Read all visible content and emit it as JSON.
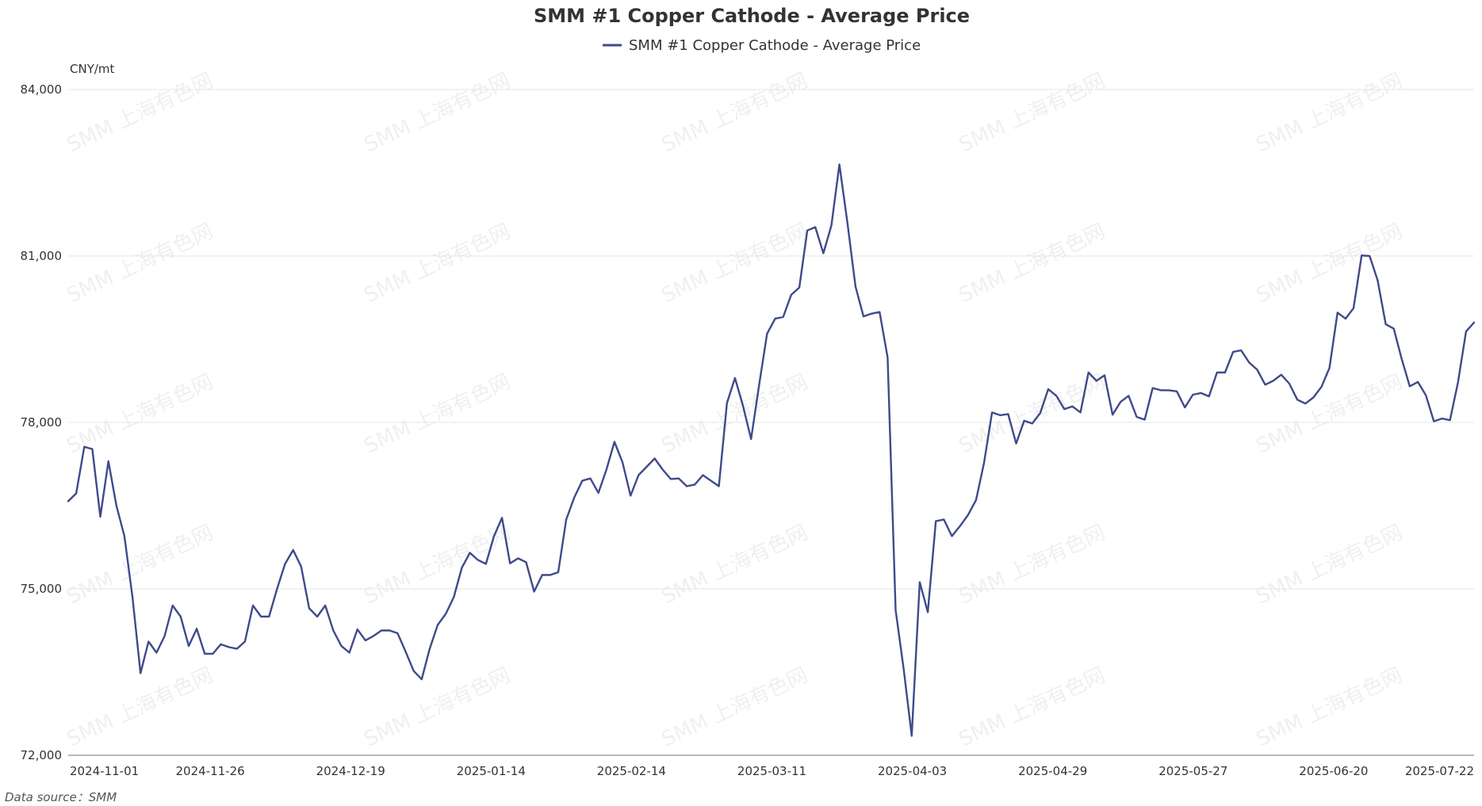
{
  "chart_data": {
    "type": "line",
    "title": "SMM #1 Copper Cathode - Average Price",
    "ylabel": "CNY/mt",
    "source": "Data source：SMM",
    "watermark": "SMM 上海有色网",
    "ylim": [
      72000,
      84000
    ],
    "yticks": [
      "84,000",
      "81,000",
      "78,000",
      "75,000",
      "72,000"
    ],
    "ytick_values": [
      84000,
      81000,
      78000,
      75000,
      72000
    ],
    "xtick_labels": [
      "2024-11-01",
      "2024-11-26",
      "2024-12-19",
      "2025-01-14",
      "2025-02-14",
      "2025-03-11",
      "2025-04-03",
      "2025-04-29",
      "2025-05-27",
      "2025-06-20",
      "2025-07-22"
    ],
    "legend_position": "top-center",
    "grid": true,
    "colors": {
      "series": "#3f4a8a"
    },
    "series": [
      {
        "name": "SMM #1 Copper Cathode - Average Price",
        "values": [
          76580,
          76720,
          77560,
          77520,
          76300,
          77300,
          76500,
          75950,
          74850,
          73480,
          74050,
          73850,
          74150,
          74700,
          74500,
          73970,
          74280,
          73830,
          73830,
          74000,
          73950,
          73920,
          74050,
          74700,
          74500,
          74500,
          75000,
          75450,
          75700,
          75400,
          74650,
          74500,
          74700,
          74250,
          73970,
          73850,
          74270,
          74070,
          74150,
          74250,
          74250,
          74200,
          73870,
          73520,
          73370,
          73920,
          74350,
          74550,
          74850,
          75380,
          75650,
          75520,
          75450,
          75950,
          76280,
          75460,
          75550,
          75480,
          74950,
          75250,
          75250,
          75300,
          76250,
          76650,
          76950,
          76990,
          76730,
          77150,
          77650,
          77280,
          76680,
          77050,
          77200,
          77350,
          77150,
          76980,
          76990,
          76850,
          76880,
          77050,
          76950,
          76850,
          78350,
          78800,
          78300,
          77700,
          78670,
          79600,
          79870,
          79900,
          80300,
          80430,
          81460,
          81520,
          81050,
          81550,
          82650,
          81600,
          80450,
          79910,
          79960,
          79990,
          79170,
          74620,
          73550,
          72350,
          75120,
          74580,
          76220,
          76250,
          75950,
          76130,
          76330,
          76600,
          77270,
          78180,
          78130,
          78150,
          77620,
          78030,
          77980,
          78170,
          78600,
          78480,
          78240,
          78290,
          78180,
          78900,
          78750,
          78850,
          78140,
          78370,
          78480,
          78100,
          78050,
          78620,
          78580,
          78580,
          78560,
          78270,
          78500,
          78530,
          78470,
          78900,
          78900,
          79270,
          79300,
          79080,
          78950,
          78680,
          78750,
          78860,
          78700,
          78410,
          78340,
          78450,
          78640,
          78980,
          79980,
          79870,
          80060,
          81010,
          81000,
          80560,
          79770,
          79690,
          79140,
          78650,
          78730,
          78490,
          78020,
          78070,
          78040,
          78720,
          79640,
          79800
        ]
      }
    ]
  }
}
